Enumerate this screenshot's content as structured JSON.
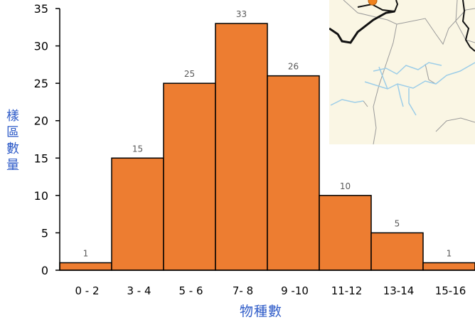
{
  "chart_data": {
    "type": "bar",
    "categories": [
      "0 - 2",
      "3 - 4",
      "5 - 6",
      "7- 8",
      "9 -10",
      "11-12",
      "13-14",
      "15-16"
    ],
    "values": [
      1,
      15,
      25,
      33,
      26,
      10,
      5,
      1
    ],
    "data_labels": [
      "1",
      "15",
      "25",
      "33",
      "26",
      "10",
      "5",
      "1"
    ],
    "xlabel": "物種數",
    "ylabel_chars": [
      "樣",
      "區",
      "數",
      "量"
    ],
    "ylim": [
      0,
      35
    ],
    "yticks": [
      "0",
      "5",
      "10",
      "15",
      "20",
      "25",
      "30",
      "35"
    ],
    "grid": false,
    "colors": {
      "bar": "#ED7D31",
      "bar_edge": "#000000",
      "label": "#595959",
      "axis_title": "#2E5BC8"
    }
  },
  "map_inset": {
    "colors": {
      "land": "#FAF6E4",
      "river": "#9CCDE8",
      "border": "#9A9A9A",
      "road": "#111111",
      "marker": "#F0821E"
    }
  }
}
